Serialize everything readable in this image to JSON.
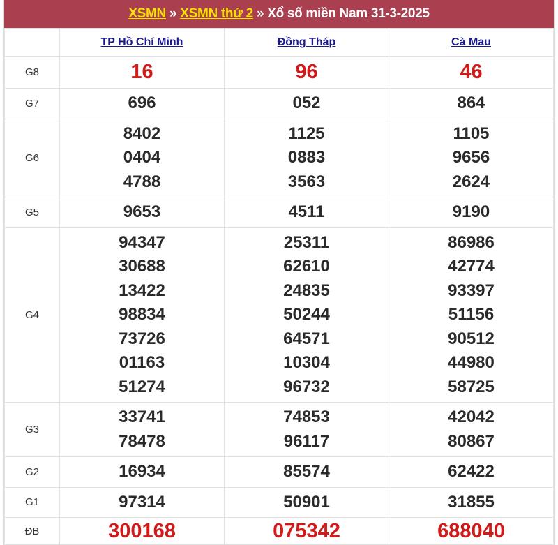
{
  "header": {
    "crumb1": "XSMN",
    "crumb2": "XSMN thứ 2",
    "separator": "»",
    "title": "Xổ số miền Nam 31-3-2025"
  },
  "provinces": [
    "TP Hồ Chí Minh",
    "Đồng Tháp",
    "Cà Mau"
  ],
  "prizes": [
    {
      "label": "G8",
      "highlight": true,
      "values": [
        [
          "16"
        ],
        [
          "96"
        ],
        [
          "46"
        ]
      ]
    },
    {
      "label": "G7",
      "values": [
        [
          "696"
        ],
        [
          "052"
        ],
        [
          "864"
        ]
      ]
    },
    {
      "label": "G6",
      "values": [
        [
          "8402",
          "0404",
          "4788"
        ],
        [
          "1125",
          "0883",
          "3563"
        ],
        [
          "1105",
          "9656",
          "2624"
        ]
      ]
    },
    {
      "label": "G5",
      "values": [
        [
          "9653"
        ],
        [
          "4511"
        ],
        [
          "9190"
        ]
      ]
    },
    {
      "label": "G4",
      "values": [
        [
          "94347",
          "30688",
          "13422",
          "98834",
          "73726",
          "01163",
          "51274"
        ],
        [
          "25311",
          "62610",
          "24835",
          "50244",
          "64571",
          "10304",
          "96732"
        ],
        [
          "86986",
          "42774",
          "93397",
          "51156",
          "90512",
          "44980",
          "58725"
        ]
      ]
    },
    {
      "label": "G3",
      "values": [
        [
          "33741",
          "78478"
        ],
        [
          "74853",
          "96117"
        ],
        [
          "42042",
          "80867"
        ]
      ]
    },
    {
      "label": "G2",
      "values": [
        [
          "16934"
        ],
        [
          "85574"
        ],
        [
          "62422"
        ]
      ]
    },
    {
      "label": "G1",
      "values": [
        [
          "97314"
        ],
        [
          "50901"
        ],
        [
          "31855"
        ]
      ]
    },
    {
      "label": "ĐB",
      "highlight": true,
      "values": [
        [
          "300168"
        ],
        [
          "075342"
        ],
        [
          "688040"
        ]
      ]
    }
  ],
  "colors": {
    "title_bg": "#a93f4f",
    "link_yellow": "#f7e200",
    "highlight_red": "#d11a1a",
    "province_link": "#1a1a8c"
  }
}
